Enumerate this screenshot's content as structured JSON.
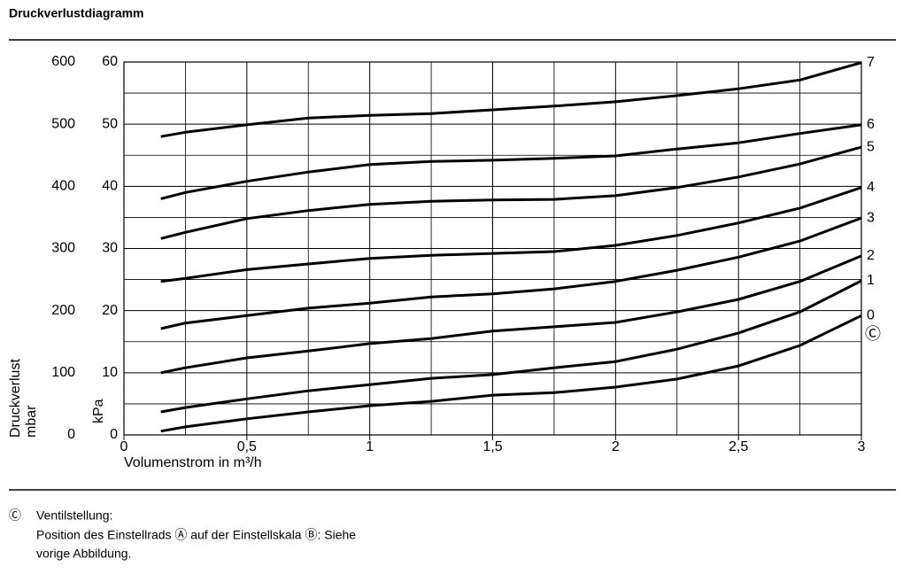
{
  "header": {
    "title": "Druckverlustdiagramm"
  },
  "chart_data": {
    "type": "line",
    "xlabel": "Volumenstrom in m³/h",
    "ylabel": "kPa",
    "y2label": [
      "Druckverlust",
      "mbar"
    ],
    "x": [
      0.15,
      0.25,
      0.5,
      0.75,
      1,
      1.25,
      1.5,
      1.75,
      2,
      2.25,
      2.5,
      2.75,
      3
    ],
    "xlim": [
      0,
      3
    ],
    "xticks": [
      0,
      {
        "value": 0.5,
        "label": "0,5"
      },
      1,
      {
        "value": 1.5,
        "label": "1,5"
      },
      2,
      {
        "value": 2.5,
        "label": "2,5"
      },
      3
    ],
    "xminorticks": [
      0.25,
      0.75,
      1.25,
      1.75,
      2.25,
      2.75
    ],
    "ylim": [
      0,
      60
    ],
    "yticks": [
      0,
      10,
      20,
      30,
      40,
      50,
      60
    ],
    "yminorticks": [
      5,
      15,
      25,
      35,
      45,
      55
    ],
    "y2lim": [
      0,
      600
    ],
    "y2ticks": [
      0,
      100,
      200,
      300,
      400,
      500,
      600
    ],
    "grid": true,
    "series_marker": "Ⓒ",
    "series": [
      {
        "name": "0",
        "color": "#000000",
        "values": [
          0.6,
          1.3,
          2.6,
          3.7,
          4.7,
          5.4,
          6.4,
          6.8,
          7.7,
          9.0,
          11.1,
          14.4,
          19.2
        ]
      },
      {
        "name": "1",
        "color": "#000000",
        "values": [
          3.7,
          4.4,
          5.8,
          7.1,
          8.1,
          9.1,
          9.7,
          10.8,
          11.8,
          13.8,
          16.4,
          19.8,
          24.8
        ]
      },
      {
        "name": "2",
        "color": "#000000",
        "values": [
          10.0,
          10.8,
          12.4,
          13.5,
          14.7,
          15.5,
          16.7,
          17.4,
          18.1,
          19.8,
          21.8,
          24.7,
          28.8
        ]
      },
      {
        "name": "3",
        "color": "#000000",
        "values": [
          17.1,
          18.0,
          19.2,
          20.4,
          21.2,
          22.2,
          22.7,
          23.5,
          24.7,
          26.5,
          28.6,
          31.2,
          34.9
        ]
      },
      {
        "name": "4",
        "color": "#000000",
        "values": [
          24.7,
          25.2,
          26.6,
          27.5,
          28.4,
          28.9,
          29.2,
          29.5,
          30.5,
          32.1,
          34.1,
          36.5,
          39.8
        ]
      },
      {
        "name": "5",
        "color": "#000000",
        "values": [
          31.6,
          32.6,
          34.8,
          36.1,
          37.1,
          37.6,
          37.8,
          37.9,
          38.5,
          39.8,
          41.5,
          43.6,
          46.3
        ]
      },
      {
        "name": "6",
        "color": "#000000",
        "values": [
          38.0,
          39.0,
          40.8,
          42.3,
          43.5,
          44.0,
          44.2,
          44.5,
          44.9,
          46.0,
          47.0,
          48.5,
          49.9
        ]
      },
      {
        "name": "7",
        "color": "#000000",
        "values": [
          48.0,
          48.7,
          49.9,
          51.0,
          51.4,
          51.7,
          52.3,
          52.9,
          53.6,
          54.6,
          55.7,
          57.1,
          59.9
        ]
      }
    ]
  },
  "footnote": {
    "symbol": "Ⓒ",
    "lines": [
      "Ventilstellung:",
      "Position des Einstellrads Ⓐ auf der Einstellskala Ⓑ: Siehe",
      "vorige Abbildung."
    ]
  }
}
